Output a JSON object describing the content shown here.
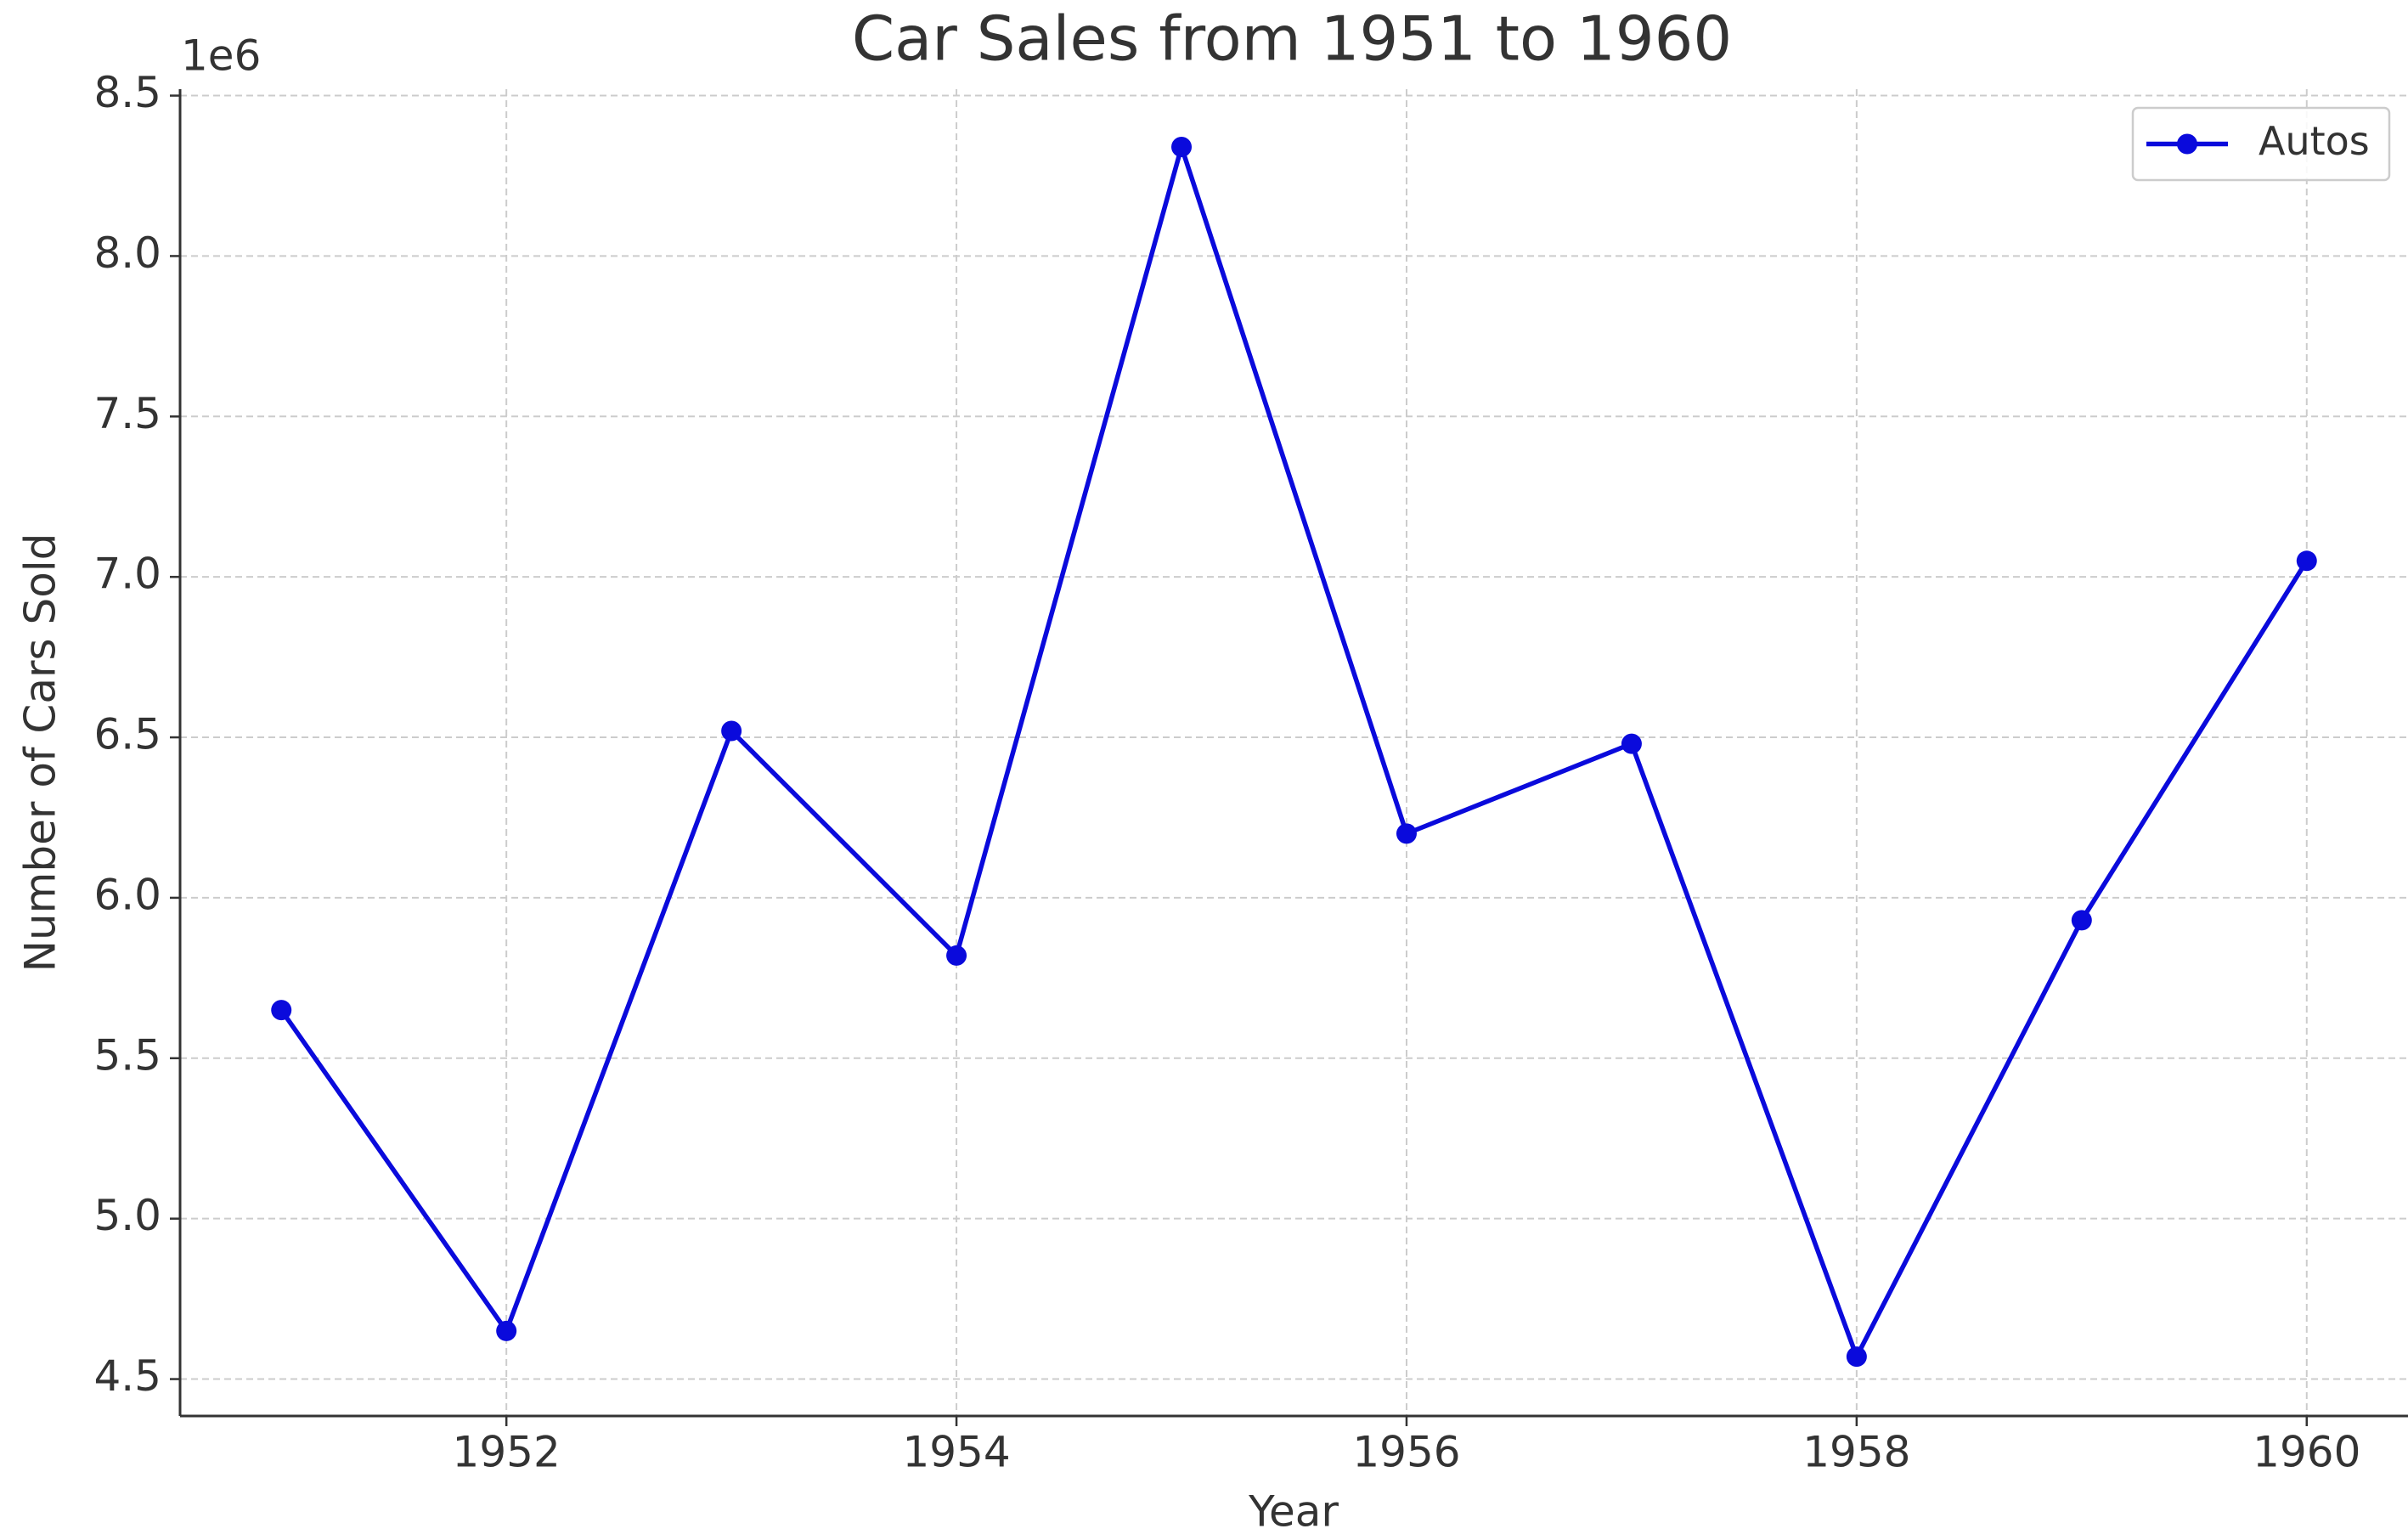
{
  "chart_data": {
    "type": "line",
    "title": "Car Sales from 1951 to 1960",
    "xlabel": "Year",
    "ylabel": "Number of Cars Sold",
    "y_offset_label": "1e6",
    "x": [
      1951,
      1952,
      1953,
      1954,
      1955,
      1956,
      1957,
      1958,
      1959,
      1960
    ],
    "series": [
      {
        "name": "Autos",
        "color": "#0a0adc",
        "values": [
          5650000,
          4650000,
          6520000,
          5820000,
          8340000,
          6200000,
          6480000,
          4570000,
          5930000,
          7050000
        ]
      }
    ],
    "xlim": [
      1950.55,
      1960.45
    ],
    "xticks": [
      1952,
      1954,
      1956,
      1958,
      1960
    ],
    "ylim": [
      4385000,
      8520000
    ],
    "yticks": [
      {
        "value": 4500000,
        "label": "4.5"
      },
      {
        "value": 5000000,
        "label": "5.0"
      },
      {
        "value": 5500000,
        "label": "5.5"
      },
      {
        "value": 6000000,
        "label": "6.0"
      },
      {
        "value": 6500000,
        "label": "6.5"
      },
      {
        "value": 7000000,
        "label": "7.0"
      },
      {
        "value": 7500000,
        "label": "7.5"
      },
      {
        "value": 8000000,
        "label": "8.0"
      },
      {
        "value": 8500000,
        "label": "8.5"
      }
    ],
    "grid": true,
    "legend": "upper right"
  }
}
